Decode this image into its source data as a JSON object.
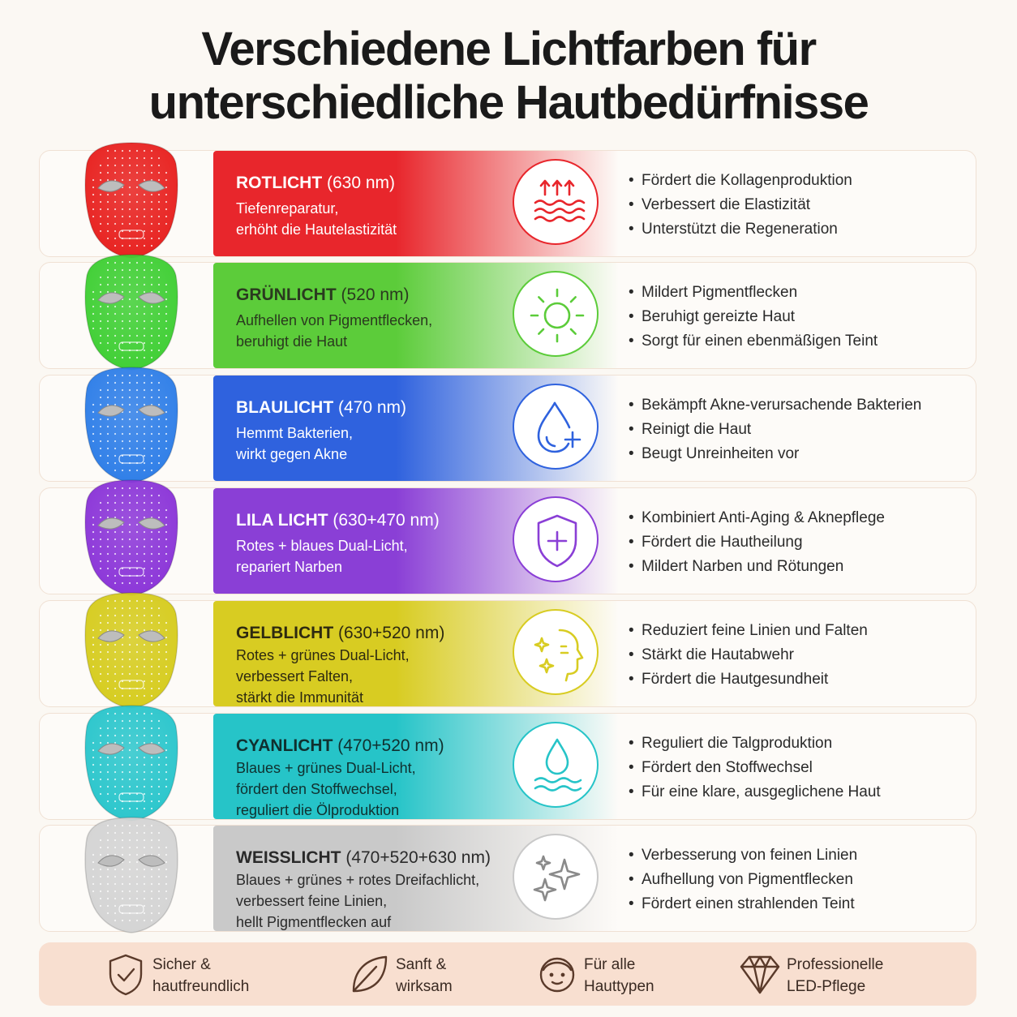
{
  "title": {
    "line1": "Verschiedene Lichtfarben für",
    "line2": "unterschiedliche Hautbedürfnisse"
  },
  "rows": [
    {
      "name_bold": "ROTLICHT",
      "wavelength": " (630 nm)",
      "desc": [
        "Tiefenreparatur,",
        "erhöht die Hautelastizität"
      ],
      "bullets": [
        "Fördert die Kollagenproduktion",
        "Verbessert die Elastizität",
        "Unterstützt die Regeneration"
      ],
      "color": "#e8262c",
      "mask_color": "#e8211f",
      "icon": "heat-waves-icon",
      "text_color": "#ffffff"
    },
    {
      "name_bold": "GRÜNLICHT",
      "wavelength": " (520 nm)",
      "desc": [
        "Aufhellen von Pigmentflecken,",
        "beruhigt die Haut"
      ],
      "bullets": [
        "Mildert Pigmentflecken",
        "Beruhigt gereizte Haut",
        "Sorgt für einen ebenmäßigen Teint"
      ],
      "color": "#5ccc3a",
      "mask_color": "#3fcf34",
      "icon": "sun-icon",
      "text_color": "#2a3a1f"
    },
    {
      "name_bold": "BLAULICHT",
      "wavelength": " (470 nm)",
      "desc": [
        "Hemmt Bakterien,",
        "wirkt gegen Akne"
      ],
      "bullets": [
        "Bekämpft Akne-verursachende Bakterien",
        "Reinigt die Haut",
        "Beugt Unreinheiten vor"
      ],
      "color": "#2f62de",
      "mask_color": "#2e7ee8",
      "icon": "drop-plus-icon",
      "text_color": "#ffffff"
    },
    {
      "name_bold": "LILA LICHT",
      "wavelength": " (630+470 nm)",
      "desc": [
        "Rotes + blaues Dual-Licht,",
        "repariert Narben"
      ],
      "bullets": [
        "Kombiniert Anti-Aging & Aknepflege",
        "Fördert die Hautheilung",
        "Mildert Narben und Rötungen"
      ],
      "color": "#8a3fd6",
      "mask_color": "#8b35d8",
      "icon": "shield-plus-icon",
      "text_color": "#ffffff"
    },
    {
      "name_bold": "GELBLICHT",
      "wavelength": " (630+520 nm)",
      "desc": [
        "Rotes + grünes Dual-Licht,",
        "verbessert Falten,",
        "stärkt die Immunität"
      ],
      "bullets": [
        "Reduziert feine Linien und Falten",
        "Stärkt die Hautabwehr",
        "Fördert die Hautgesundheit"
      ],
      "color": "#d8cc22",
      "mask_color": "#d6cc1e",
      "icon": "face-sparkle-icon",
      "text_color": "#2e2a10"
    },
    {
      "name_bold": "CYANLICHT",
      "wavelength": " (470+520 nm)",
      "desc": [
        "Blaues + grünes Dual-Licht,",
        "fördert den Stoffwechsel,",
        "reguliert die Ölproduktion"
      ],
      "bullets": [
        "Reguliert die Talgproduktion",
        "Fördert den Stoffwechsel",
        "Für eine klare, ausgeglichene Haut"
      ],
      "color": "#26c4c8",
      "mask_color": "#2ac6cc",
      "icon": "drop-waves-icon",
      "text_color": "#10302f"
    },
    {
      "name_bold": "WEISSLICHT",
      "wavelength": " (470+520+630 nm)",
      "desc": [
        "Blaues + grünes + rotes Dreifachlicht,",
        "verbessert feine Linien,",
        "hellt Pigmentflecken auf"
      ],
      "bullets": [
        "Verbesserung von feinen Linien",
        "Aufhellung von Pigmentflecken",
        "Fördert einen strahlenden Teint"
      ],
      "color": "#c9c9c9",
      "mask_color": "#d4d4d4",
      "icon": "sparkles-icon",
      "text_color": "#2a2a2a"
    }
  ],
  "footer": [
    {
      "line1": "Sicher &",
      "line2": "hautfreundlich",
      "icon": "shield-check-icon"
    },
    {
      "line1": "Sanft &",
      "line2": "wirksam",
      "icon": "leaf-icon"
    },
    {
      "line1": "Für alle",
      "line2": "Hauttypen",
      "icon": "face-icon"
    },
    {
      "line1": "Professionelle",
      "line2": "LED-Pflege",
      "icon": "diamond-icon"
    }
  ]
}
